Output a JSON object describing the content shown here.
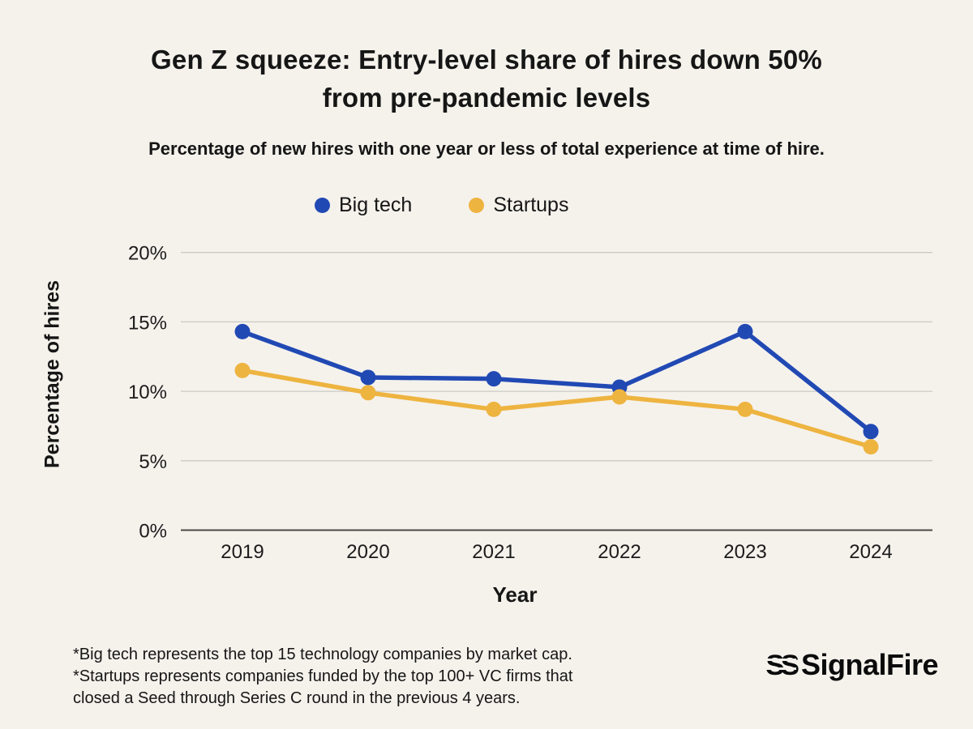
{
  "title": {
    "line1": "Gen Z squeeze: Entry-level share of hires down 50%",
    "line2": "from pre-pandemic levels"
  },
  "subtitle": "Percentage of new hires with one year or less of total experience at time of hire.",
  "chart_data": {
    "type": "line",
    "x": [
      "2019",
      "2020",
      "2021",
      "2022",
      "2023",
      "2024"
    ],
    "series": [
      {
        "name": "Big tech",
        "color": "#2149b4",
        "values": [
          14.3,
          11.0,
          10.9,
          10.3,
          14.3,
          7.1
        ]
      },
      {
        "name": "Startups",
        "color": "#eeb440",
        "values": [
          11.5,
          9.9,
          8.7,
          9.6,
          8.7,
          6.0
        ]
      }
    ],
    "xlabel": "Year",
    "ylabel": "Percentage of hires",
    "ylim": [
      0,
      20
    ],
    "yticks": [
      0,
      5,
      10,
      15,
      20
    ],
    "ytick_format": "{v}%",
    "grid": true,
    "legend_position": "top-center"
  },
  "footnote": {
    "lines": [
      "*Big tech represents the top 15 technology companies by market cap.",
      "*Startups represents companies funded by the top 100+ VC firms that",
      "closed a Seed through Series C round in the previous 4 years."
    ]
  },
  "logo": {
    "mark": "SS",
    "text": "SignalFire"
  },
  "colors": {
    "background": "#f5f2ec",
    "text": "#161616",
    "grid": "#cbc9c3",
    "axis_line": "#4b4a47",
    "tick_label": "#1b1b1b"
  }
}
